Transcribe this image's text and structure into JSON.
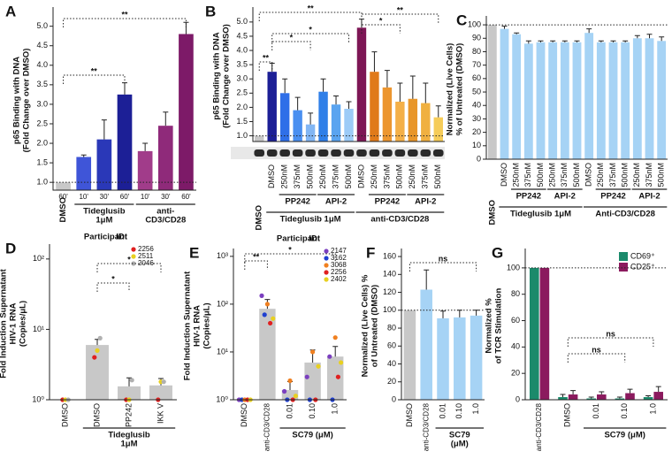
{
  "chart_data": [
    {
      "type": "bar",
      "panel": "A",
      "ylabel": [
        "p65 Binding with DNA",
        "(Fold Change over DMSO)"
      ],
      "categories": [
        "60'",
        "10'",
        "30'",
        "60'",
        "10'",
        "30'",
        "60'"
      ],
      "values": [
        1,
        1.65,
        2.1,
        3.25,
        1.8,
        2.45,
        4.8
      ],
      "errors": [
        null,
        0.05,
        0.5,
        0.3,
        0.2,
        0.35,
        0.3
      ],
      "colors": [
        "#c8c8c8",
        "#3f55d8",
        "#2a38b8",
        "#1c1f96",
        "#a13c8a",
        "#8f2a7a",
        "#7d1a68"
      ],
      "group_labels": [
        "DMSO",
        [
          "Tideglusib",
          "1μM"
        ],
        [
          "anti-",
          "CD3/CD28"
        ]
      ],
      "annotations": [
        "**",
        "**"
      ],
      "hline": 1,
      "ylim": [
        0.8,
        5.4
      ],
      "yticks": [
        {
          "value": 1,
          "label": "1.0"
        },
        {
          "value": 1.5,
          "label": "1.5"
        },
        {
          "value": 2,
          "label": "2.0"
        },
        {
          "value": 2.5,
          "label": "2.5"
        },
        {
          "value": 3,
          "label": "3.0"
        },
        {
          "value": 3.5,
          "label": "3.5"
        },
        {
          "value": 4,
          "label": "4.0"
        },
        {
          "value": 4.5,
          "label": "4.5"
        },
        {
          "value": 5,
          "label": "5.0"
        }
      ]
    },
    {
      "type": "bar",
      "panel": "B",
      "ylabel": [
        "p65 Binding with DNA",
        "(Fold Change over DMSO)"
      ],
      "categories": [
        null,
        "DMSO",
        "250nM",
        "375nM",
        "500nM",
        "250nM",
        "375nM",
        "500nM",
        "DMSO",
        "250nM",
        "375nM",
        "500nM",
        "250nM",
        "375nM",
        "500nM"
      ],
      "values": [
        1,
        3.25,
        2.5,
        1.9,
        1.4,
        2.55,
        2.1,
        1.95,
        4.8,
        3.25,
        2.7,
        2.2,
        2.3,
        2.15,
        1.65
      ],
      "errors": [
        null,
        0.3,
        0.5,
        0.45,
        0.4,
        0.45,
        0.3,
        0.25,
        0.3,
        0.7,
        0.6,
        0.65,
        0.8,
        0.7,
        0.4
      ],
      "colors": [
        "#c8c8c8",
        "#1c1f96",
        "#2f6fe8",
        "#4a8ff0",
        "#82b6f4",
        "#2f7fe8",
        "#5aa4f0",
        "#9ccbf7",
        "#7d1655",
        "#e07a1a",
        "#ec9630",
        "#f4b048",
        "#e8962a",
        "#f0b040",
        "#f6cc58"
      ],
      "group_labels": [
        "DMSO",
        "PP242",
        "API-2",
        "Tideglusib 1μM",
        "PP242",
        "API-2",
        "anti-CD3/CD28"
      ],
      "annotations": [
        "**",
        "**",
        "*",
        "*",
        "*",
        "**"
      ],
      "hline": 1,
      "ylim": [
        0.8,
        5.4
      ],
      "yticks": [
        {
          "value": 1,
          "label": "1.0"
        },
        {
          "value": 1.5,
          "label": "1.5"
        },
        {
          "value": 2,
          "label": "2.0"
        },
        {
          "value": 2.5,
          "label": "2.5"
        },
        {
          "value": 3,
          "label": "3.0"
        },
        {
          "value": 3.5,
          "label": "3.5"
        },
        {
          "value": 4,
          "label": "4.0"
        },
        {
          "value": 4.5,
          "label": "4.5"
        },
        {
          "value": 5,
          "label": "5.0"
        }
      ]
    },
    {
      "type": "bar",
      "panel": "C",
      "ylabel": [
        "Normalized (Live Cells)",
        "% of Untreated (DMSO)"
      ],
      "categories": [
        null,
        "DMSO",
        "250nM",
        "375nM",
        "500nM",
        "250nM",
        "375nM",
        "500nM",
        "DMSO",
        "250nM",
        "375nM",
        "500nM",
        "250nM",
        "375nM",
        "500nM"
      ],
      "values": [
        100,
        97,
        93,
        86,
        87,
        87,
        87,
        87,
        94,
        87,
        87,
        87,
        90,
        90,
        88
      ],
      "errors": [
        null,
        2,
        1,
        2,
        1,
        1,
        1,
        1,
        3,
        1,
        1,
        1,
        2,
        3,
        3
      ],
      "colors": [
        "#c8c8c8",
        "#a6d3f5",
        "#a6d3f5",
        "#a6d3f5",
        "#a6d3f5",
        "#a6d3f5",
        "#a6d3f5",
        "#a6d3f5",
        "#a6d3f5",
        "#a6d3f5",
        "#a6d3f5",
        "#a6d3f5",
        "#a6d3f5",
        "#a6d3f5",
        "#a6d3f5"
      ],
      "group_labels": [
        "DMSO",
        "PP242",
        "API-2",
        "Tideglusib 1μM",
        "PP242",
        "API-2",
        "Anti-CD3/CD28"
      ],
      "hline": 100,
      "ylim": [
        0,
        104
      ],
      "yticks": [
        0,
        10,
        20,
        30,
        40,
        50,
        60,
        70,
        80,
        90,
        100
      ]
    },
    {
      "type": "bar",
      "panel": "D",
      "ylabel": [
        "Fold Induction Supernatant",
        "HIV-1 RNA",
        "(Copies/μL)"
      ],
      "categories": [
        "DMSO",
        "DMSO",
        "PP242",
        "IKK V"
      ],
      "values": [
        1,
        6,
        1.55,
        1.6
      ],
      "errors": [
        null,
        1.2,
        0.5,
        0.4
      ],
      "colors": [
        "#c8c8c8",
        "#c8c8c8",
        "#c8c8c8",
        "#c8c8c8"
      ],
      "legend_title": [
        "Participant",
        "ID:"
      ],
      "points": [
        {
          "name": "2256",
          "color": "#e02020",
          "values": [
            1,
            4,
            1,
            1
          ]
        },
        {
          "name": "2511",
          "color": "#e8d020",
          "values": [
            1,
            5,
            1,
            1.8
          ]
        },
        {
          "name": "2046",
          "color": "#b0b0b0",
          "values": [
            1,
            7.5,
            1.9,
            1.8
          ]
        }
      ],
      "group_labels": [
        [
          "Tideglusib",
          "1μM"
        ]
      ],
      "annotations": [
        "*",
        "*"
      ],
      "log_scale": true,
      "ylim": [
        1,
        145
      ],
      "yticks": [
        {
          "value": 1,
          "label": "10⁰"
        },
        {
          "value": 10,
          "label": "10¹"
        },
        {
          "value": 100,
          "label": "10²"
        }
      ]
    },
    {
      "type": "bar",
      "panel": "E",
      "ylabel": [
        "Fold Induction Supernatant",
        "HIV-1 RNA",
        "(Copies/μL)"
      ],
      "categories": [
        "DMSO",
        "anti-CD3/CD28",
        "0.01",
        "0.10",
        "1.0"
      ],
      "values": [
        1,
        80,
        1.6,
        6,
        8
      ],
      "errors": [
        null,
        45,
        0.8,
        5,
        5
      ],
      "colors": [
        "#c8c8c8",
        "#c8c8c8",
        "#c8c8c8",
        "#c8c8c8",
        "#c8c8c8"
      ],
      "legend_title": [
        "Participant",
        "ID:"
      ],
      "points": [
        {
          "name": "2147",
          "color": "#7b3fbf",
          "values": [
            1,
            150,
            1.5,
            3,
            8
          ]
        },
        {
          "name": "3162",
          "color": "#2040d0",
          "values": [
            1,
            60,
            1,
            1,
            1
          ]
        },
        {
          "name": "3068",
          "color": "#f08020",
          "values": [
            1,
            100,
            2.5,
            10,
            20
          ]
        },
        {
          "name": "2256",
          "color": "#e02020",
          "values": [
            1,
            40,
            1,
            1,
            3
          ]
        },
        {
          "name": "2402",
          "color": "#e8d020",
          "values": [
            1,
            50,
            1.2,
            5,
            6
          ]
        }
      ],
      "group_labels": [
        "SC79 (μM)"
      ],
      "annotations": [
        "**",
        "*"
      ],
      "log_scale": true,
      "ylim": [
        1,
        1230
      ],
      "yticks": [
        {
          "value": 1,
          "label": "10⁰"
        },
        {
          "value": 10,
          "label": "10¹"
        },
        {
          "value": 100,
          "label": "10²"
        },
        {
          "value": 1000,
          "label": "10³"
        }
      ]
    },
    {
      "type": "bar",
      "panel": "F",
      "ylabel": [
        "Normalized (Live Cells) %",
        "of Untreated (DMSO)"
      ],
      "categories": [
        "DMSO",
        "anti-CD3/CD28",
        "0.01",
        "0.10",
        "1.0"
      ],
      "values": [
        100,
        123,
        91,
        92,
        94
      ],
      "errors": [
        null,
        22,
        8,
        8,
        6
      ],
      "colors": [
        "#c8c8c8",
        "#a6d3f5",
        "#a6d3f5",
        "#a6d3f5",
        "#a6d3f5"
      ],
      "group_labels": [
        [
          "SC79",
          "(μM)"
        ]
      ],
      "annotations": [
        "ns"
      ],
      "hline": 100,
      "ylim": [
        0,
        165
      ],
      "yticks": [
        0,
        20,
        40,
        60,
        80,
        100,
        120,
        140,
        160
      ]
    },
    {
      "type": "bar",
      "panel": "G",
      "ylabel": [
        "Normalized %",
        "of TCR Stimulation"
      ],
      "categories": [
        "anti-CD3/CD28",
        "DMSO",
        "0.01",
        "0.10",
        "1.0"
      ],
      "series": [
        {
          "name": "CD69⁺",
          "color": "#1b8a6b",
          "values": [
            100,
            2,
            1,
            1,
            2
          ],
          "errors": [
            null,
            2,
            1,
            1,
            1
          ]
        },
        {
          "name": "CD25⁺",
          "color": "#8b1a5e",
          "values": [
            100,
            4,
            4,
            5,
            6
          ],
          "errors": [
            null,
            3,
            2,
            3,
            4
          ]
        }
      ],
      "group_labels": [
        "SC79 (μM)"
      ],
      "annotations": [
        "ns",
        "ns"
      ],
      "hline": 100,
      "ylim": [
        0,
        112
      ],
      "yticks": [
        0,
        20,
        40,
        60,
        80,
        100
      ]
    }
  ]
}
